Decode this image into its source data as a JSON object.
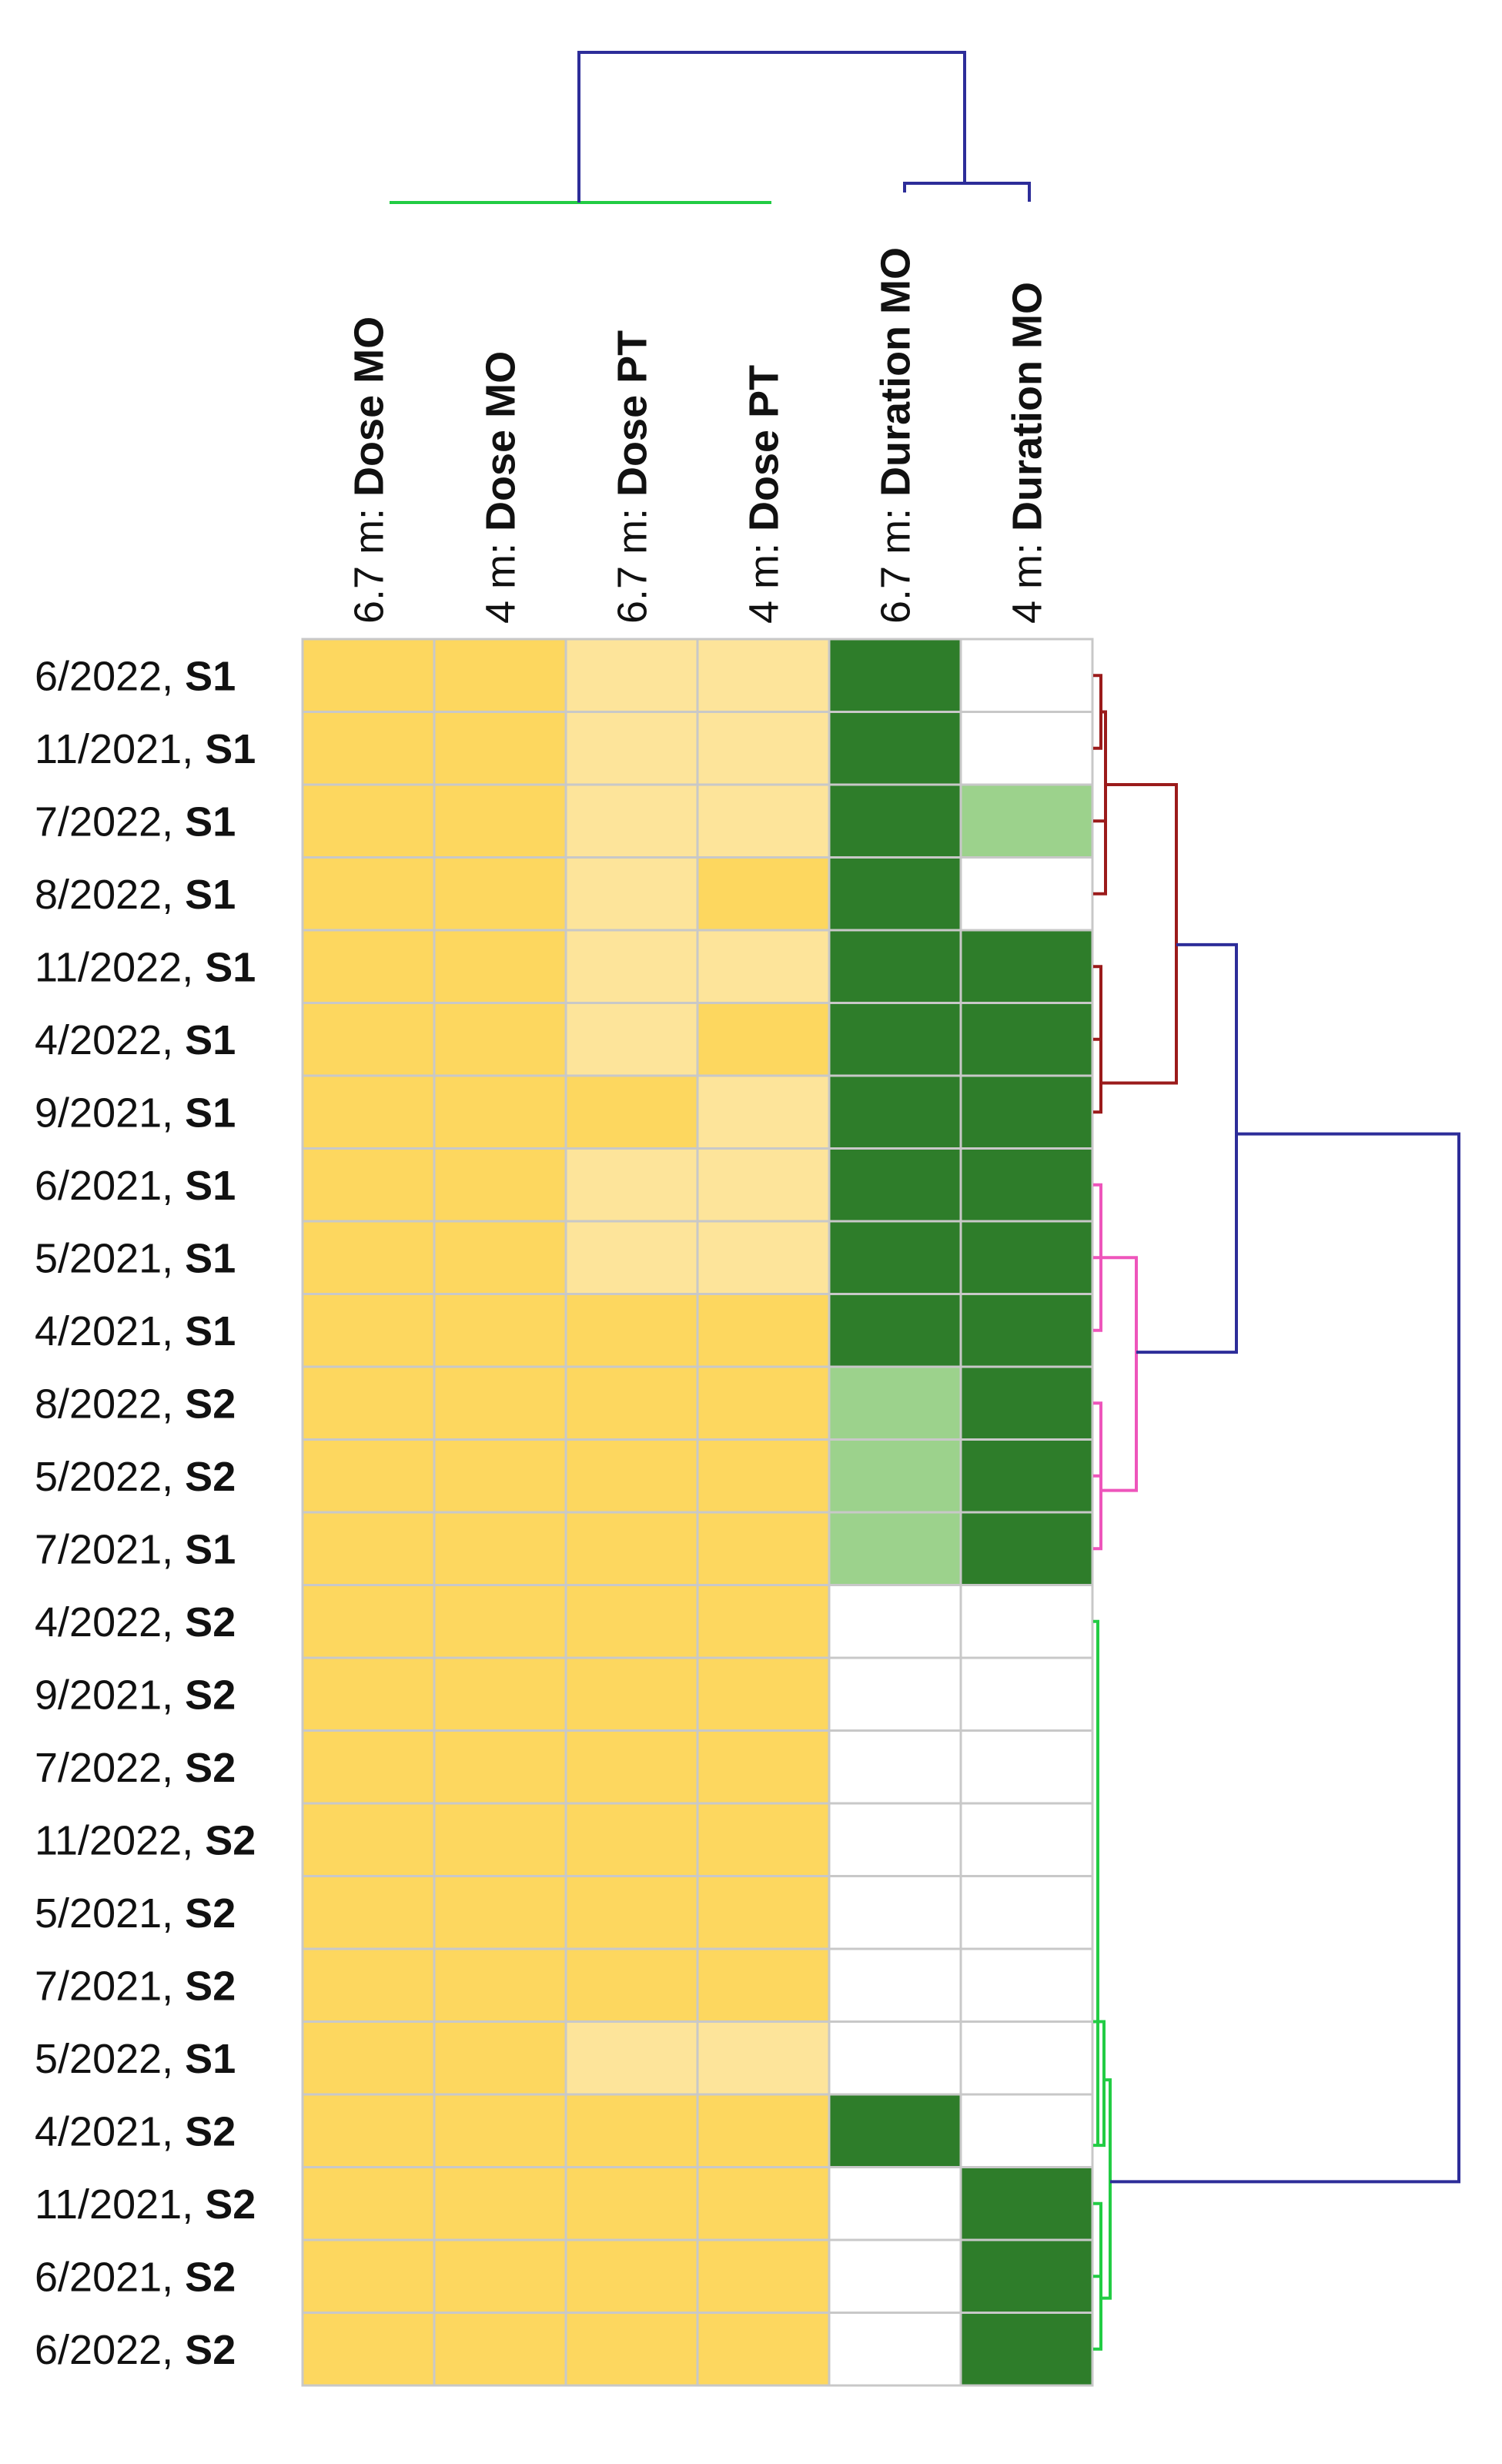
{
  "chart_data": {
    "type": "heatmap",
    "title": "",
    "columns": [
      {
        "prefix": "6.7 m: ",
        "variable": "Dose MO"
      },
      {
        "prefix": "4 m: ",
        "variable": "Dose MO"
      },
      {
        "prefix": "6.7 m: ",
        "variable": "Dose PT"
      },
      {
        "prefix": "4 m: ",
        "variable": "Dose PT"
      },
      {
        "prefix": "6.7 m: ",
        "variable": "Duration MO"
      },
      {
        "prefix": "4 m: ",
        "variable": "Duration MO"
      }
    ],
    "rows": [
      {
        "date": "6/2022, ",
        "session": "S1"
      },
      {
        "date": "11/2021, ",
        "session": "S1"
      },
      {
        "date": "7/2022, ",
        "session": "S1"
      },
      {
        "date": "8/2022, ",
        "session": "S1"
      },
      {
        "date": "11/2022, ",
        "session": "S1"
      },
      {
        "date": "4/2022, ",
        "session": "S1"
      },
      {
        "date": "9/2021, ",
        "session": "S1"
      },
      {
        "date": "6/2021, ",
        "session": "S1"
      },
      {
        "date": "5/2021, ",
        "session": "S1"
      },
      {
        "date": "4/2021, ",
        "session": "S1"
      },
      {
        "date": "8/2022, ",
        "session": "S2"
      },
      {
        "date": "5/2022, ",
        "session": "S2"
      },
      {
        "date": "7/2021, ",
        "session": "S1"
      },
      {
        "date": "4/2022, ",
        "session": "S2"
      },
      {
        "date": "9/2021, ",
        "session": "S2"
      },
      {
        "date": "7/2022, ",
        "session": "S2"
      },
      {
        "date": "11/2022, ",
        "session": "S2"
      },
      {
        "date": "5/2021, ",
        "session": "S2"
      },
      {
        "date": "7/2021, ",
        "session": "S2"
      },
      {
        "date": "5/2022, ",
        "session": "S1"
      },
      {
        "date": "4/2021, ",
        "session": "S2"
      },
      {
        "date": "11/2021, ",
        "session": "S2"
      },
      {
        "date": "6/2021, ",
        "session": "S2"
      },
      {
        "date": "6/2022, ",
        "session": "S2"
      }
    ],
    "values": [
      [
        2,
        2,
        1,
        1,
        2,
        0
      ],
      [
        2,
        2,
        1,
        1,
        2,
        0
      ],
      [
        2,
        2,
        1,
        1,
        2,
        1
      ],
      [
        2,
        2,
        1,
        2,
        2,
        0
      ],
      [
        2,
        2,
        1,
        1,
        2,
        2
      ],
      [
        2,
        2,
        1,
        2,
        2,
        2
      ],
      [
        2,
        2,
        2,
        1,
        2,
        2
      ],
      [
        2,
        2,
        1,
        1,
        2,
        2
      ],
      [
        2,
        2,
        1,
        1,
        2,
        2
      ],
      [
        2,
        2,
        2,
        2,
        2,
        2
      ],
      [
        2,
        2,
        2,
        2,
        1,
        2
      ],
      [
        2,
        2,
        2,
        2,
        1,
        2
      ],
      [
        2,
        2,
        2,
        2,
        1,
        2
      ],
      [
        2,
        2,
        2,
        2,
        0,
        0
      ],
      [
        2,
        2,
        2,
        2,
        0,
        0
      ],
      [
        2,
        2,
        2,
        2,
        0,
        0
      ],
      [
        2,
        2,
        2,
        2,
        0,
        0
      ],
      [
        2,
        2,
        2,
        2,
        0,
        0
      ],
      [
        2,
        2,
        2,
        2,
        0,
        0
      ],
      [
        2,
        2,
        1,
        1,
        0,
        0
      ],
      [
        2,
        2,
        2,
        2,
        2,
        0
      ],
      [
        2,
        2,
        2,
        2,
        0,
        2
      ],
      [
        2,
        2,
        2,
        2,
        0,
        2
      ],
      [
        2,
        2,
        2,
        2,
        0,
        2
      ]
    ],
    "value_levels": "0 = empty, 1 = light, 2 = full",
    "palettes": {
      "dose": {
        "0": "#ffffff",
        "1": "#fde49a",
        "2": "#fdd75f"
      },
      "duration": {
        "0": "#ffffff",
        "1": "#9cd28c",
        "2": "#2e7d2a"
      }
    },
    "grid_color": "#c8c8c8",
    "column_dendrogram": {
      "clusters": [
        {
          "members": [
            0,
            1,
            2,
            3
          ],
          "color": "#22cc44"
        },
        {
          "members": [
            4,
            5
          ],
          "color": "#2d2d99"
        }
      ],
      "root_color": "#2d2d99"
    },
    "row_dendrogram": {
      "clusters": [
        {
          "members": [
            0,
            1,
            2,
            3,
            4,
            5,
            6
          ],
          "color": "#9b1b1b"
        },
        {
          "members": [
            7,
            8,
            9,
            10,
            11,
            12
          ],
          "color": "#ee55bb"
        },
        {
          "members": [
            13,
            14,
            15,
            16,
            17,
            18,
            19,
            20,
            21,
            22,
            23
          ],
          "color": "#22cc44"
        }
      ],
      "root_color": "#2d2d99"
    }
  }
}
